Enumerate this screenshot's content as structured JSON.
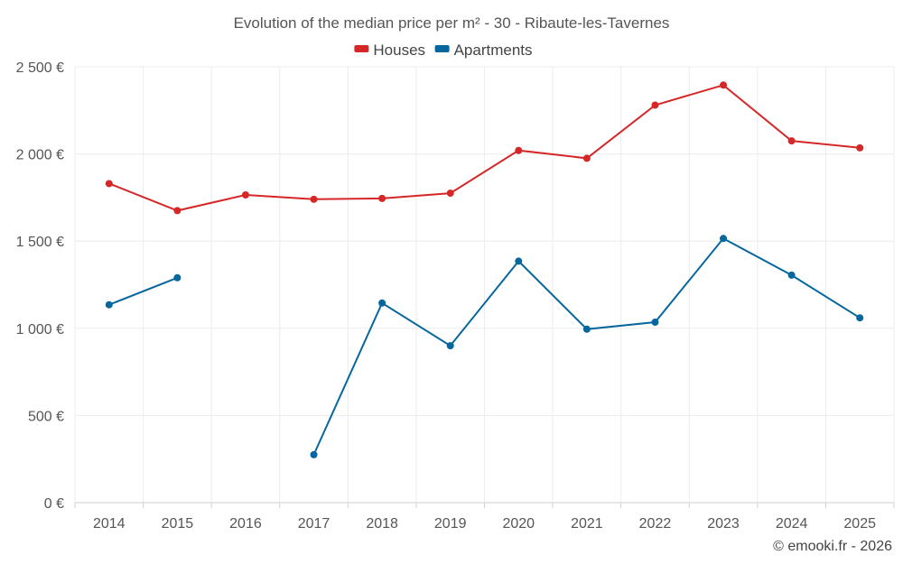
{
  "chart_data": {
    "type": "line",
    "title": "Evolution of the median price per m² - 30 - Ribaute-les-Tavernes",
    "xlabel": "",
    "ylabel": "",
    "categories": [
      "2014",
      "2015",
      "2016",
      "2017",
      "2018",
      "2019",
      "2020",
      "2021",
      "2022",
      "2023",
      "2024",
      "2025"
    ],
    "ylim": [
      0,
      2500
    ],
    "yticks": [
      0,
      500,
      1000,
      1500,
      2000,
      2500
    ],
    "ytick_labels": [
      "0 €",
      "500 €",
      "1 000 €",
      "1 500 €",
      "2 000 €",
      "2 500 €"
    ],
    "grid": true,
    "legend_position": "top-center",
    "series": [
      {
        "name": "Houses",
        "color": "#d62728",
        "values": [
          1830,
          1675,
          1765,
          1740,
          1745,
          1775,
          2020,
          1975,
          2280,
          2395,
          2075,
          2035
        ]
      },
      {
        "name": "Apartments",
        "color": "#06679e",
        "values": [
          1135,
          1290,
          null,
          275,
          1145,
          900,
          1385,
          995,
          1035,
          1515,
          1305,
          1060
        ]
      }
    ],
    "credit": "© emooki.fr - 2026"
  }
}
